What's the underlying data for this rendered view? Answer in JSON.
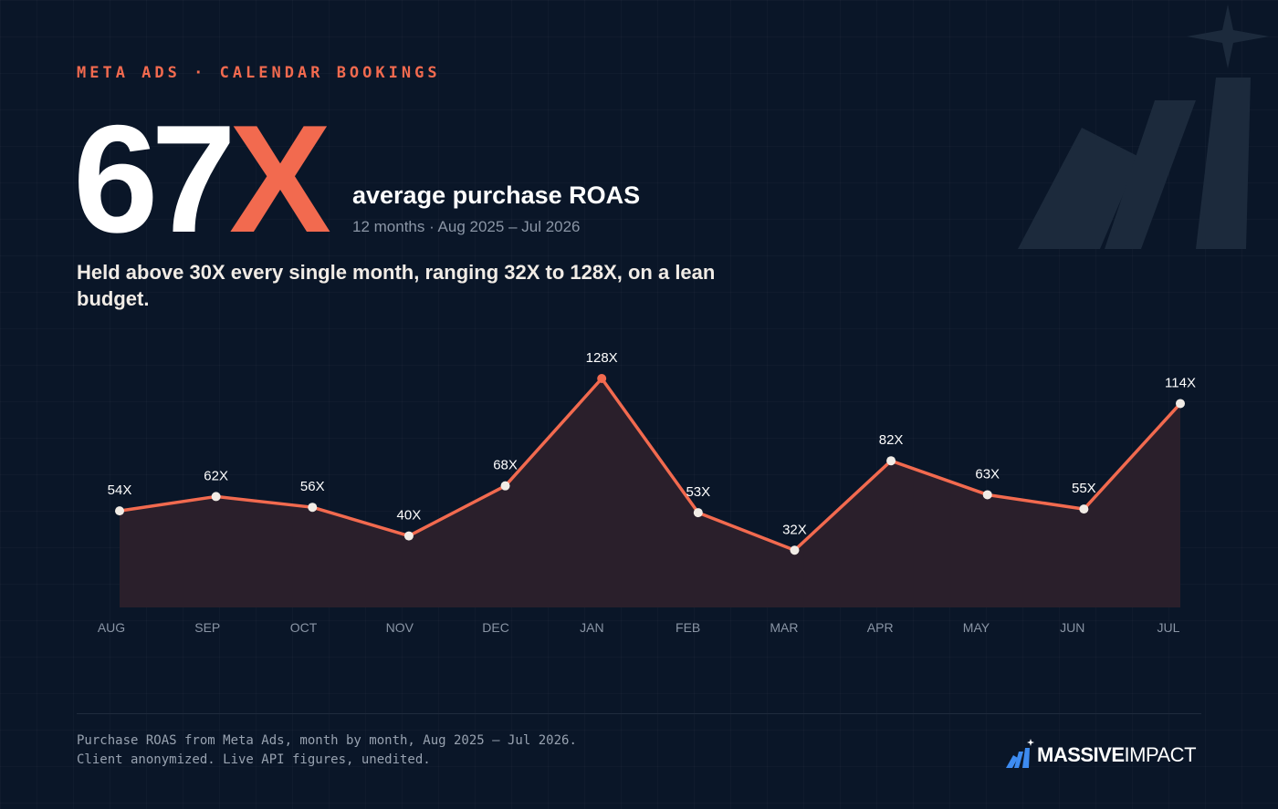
{
  "header": {
    "eyebrow": "META ADS · CALENDAR BOOKINGS",
    "hero_number": "67",
    "hero_suffix": "X",
    "hero_label": "average purchase ROAS",
    "hero_sub": "12 months · Aug 2025 – Jul 2026",
    "headline": "Held above 30X every single month, ranging 32X to 128X, on a lean budget."
  },
  "colors": {
    "background": "#0a1628",
    "accent": "#f26a4f",
    "area_fill": "#2a1f2b",
    "point": "#f1ece6",
    "logo_blue": "#3d8bf0"
  },
  "chart_data": {
    "type": "area",
    "categories": [
      "AUG",
      "SEP",
      "OCT",
      "NOV",
      "DEC",
      "JAN",
      "FEB",
      "MAR",
      "APR",
      "MAY",
      "JUN",
      "JUL"
    ],
    "series": [
      {
        "values": [
          54,
          62,
          56,
          40,
          68,
          128,
          53,
          32,
          82,
          63,
          55,
          114
        ],
        "labels": [
          "54X",
          "62X",
          "56X",
          "40X",
          "68X",
          "128X",
          "53X",
          "32X",
          "82X",
          "63X",
          "55X",
          "114X"
        ]
      }
    ],
    "xlabel": "",
    "ylabel": "",
    "ylim": [
      0,
      132
    ],
    "grid": false,
    "legend": "none"
  },
  "footer": {
    "note_line1": "Purchase ROAS from Meta Ads, month by month, Aug 2025 – Jul 2026.",
    "note_line2": "Client anonymized. Live API figures, unedited.",
    "logo_bold": "MASSIVE",
    "logo_light": "IMPACT"
  }
}
